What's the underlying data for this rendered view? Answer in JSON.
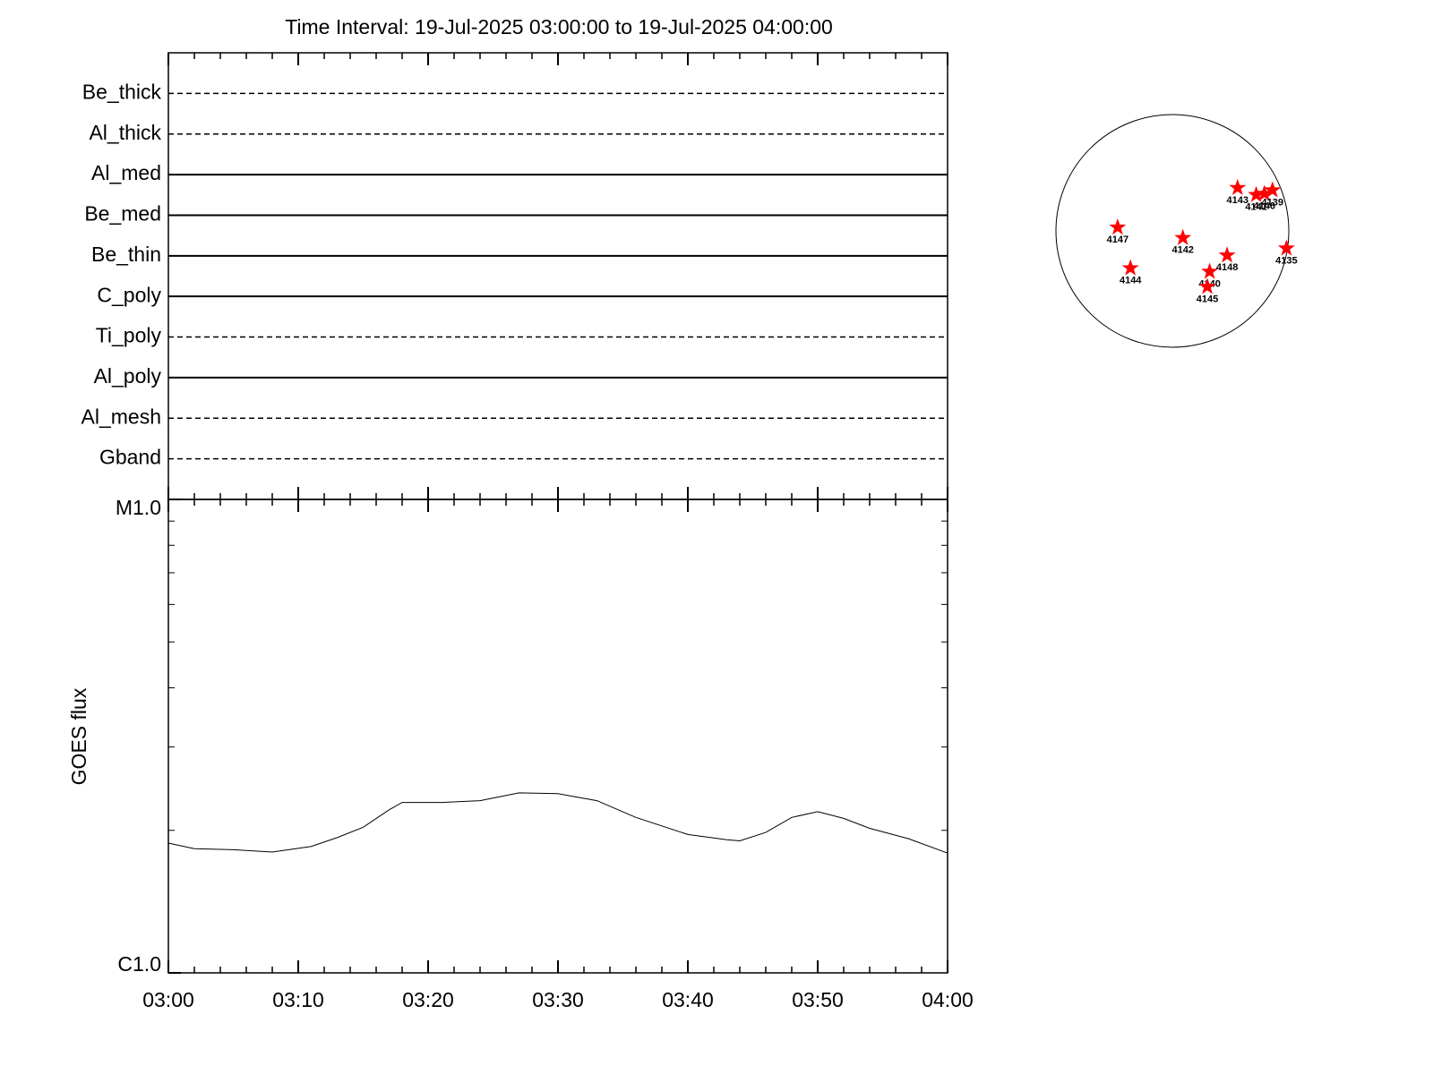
{
  "chart_data": [
    {
      "type": "timeline",
      "title": "Time Interval: 19-Jul-2025 03:00:00 to 19-Jul-2025 04:00:00",
      "categories": [
        "Be_thick",
        "Al_thick",
        "Al_med",
        "Be_med",
        "Be_thin",
        "C_poly",
        "Ti_poly",
        "Al_poly",
        "Al_mesh",
        "Gband"
      ],
      "line_styles": [
        "dashed",
        "dashed",
        "solid",
        "solid",
        "solid",
        "solid",
        "dashed",
        "solid",
        "dashed",
        "dashed"
      ],
      "color": "#000000"
    },
    {
      "type": "line",
      "ylabel": "GOES flux",
      "x": [
        "03:00",
        "03:02",
        "03:05",
        "03:08",
        "03:11",
        "03:13",
        "03:15",
        "03:17",
        "03:18",
        "03:21",
        "03:24",
        "03:27",
        "03:30",
        "03:33",
        "03:36",
        "03:40",
        "03:43",
        "03:44",
        "03:46",
        "03:48",
        "03:50",
        "03:52",
        "03:54",
        "03:57",
        "04:00"
      ],
      "values": [
        1.88e-06,
        1.83e-06,
        1.82e-06,
        1.8e-06,
        1.85e-06,
        1.93e-06,
        2.03e-06,
        2.21e-06,
        2.29e-06,
        2.29e-06,
        2.31e-06,
        2.4e-06,
        2.39e-06,
        2.31e-06,
        2.13e-06,
        1.96e-06,
        1.91e-06,
        1.9e-06,
        1.98e-06,
        2.13e-06,
        2.19e-06,
        2.12e-06,
        2.02e-06,
        1.92e-06,
        1.79e-06
      ],
      "color": "#000000",
      "xlim": [
        "03:00",
        "04:00"
      ],
      "xticks": [
        "03:00",
        "03:10",
        "03:20",
        "03:30",
        "03:40",
        "03:50",
        "04:00"
      ],
      "xminorticks": [
        "03:02",
        "03:04",
        "03:06",
        "03:08",
        "03:12",
        "03:14",
        "03:16",
        "03:18",
        "03:22",
        "03:24",
        "03:26",
        "03:28",
        "03:32",
        "03:34",
        "03:36",
        "03:38",
        "03:42",
        "03:44",
        "03:46",
        "03:48",
        "03:52",
        "03:54",
        "03:56",
        "03:58"
      ],
      "log_y": true,
      "ylim": [
        1e-06,
        1e-05
      ],
      "yticks": [
        {
          "value": 1e-06,
          "label": "C1.0"
        },
        {
          "value": 1e-05,
          "label": "M1.0"
        }
      ],
      "yminorticks": [
        2e-06,
        3e-06,
        4e-06,
        5e-06,
        6e-06,
        7e-06,
        8e-06,
        9e-06
      ]
    },
    {
      "type": "disk",
      "labels": [
        "4143",
        "4141",
        "4146",
        "4139",
        "4147",
        "4142",
        "4148",
        "4135",
        "4144",
        "4140",
        "4145"
      ],
      "x": [
        0.56,
        0.72,
        0.79,
        0.86,
        -0.47,
        0.09,
        0.47,
        0.98,
        -0.36,
        0.32,
        0.3
      ],
      "y": [
        0.37,
        0.31,
        0.32,
        0.35,
        0.03,
        -0.06,
        -0.21,
        -0.15,
        -0.32,
        -0.35,
        -0.48
      ],
      "color": "#ff0000"
    }
  ]
}
